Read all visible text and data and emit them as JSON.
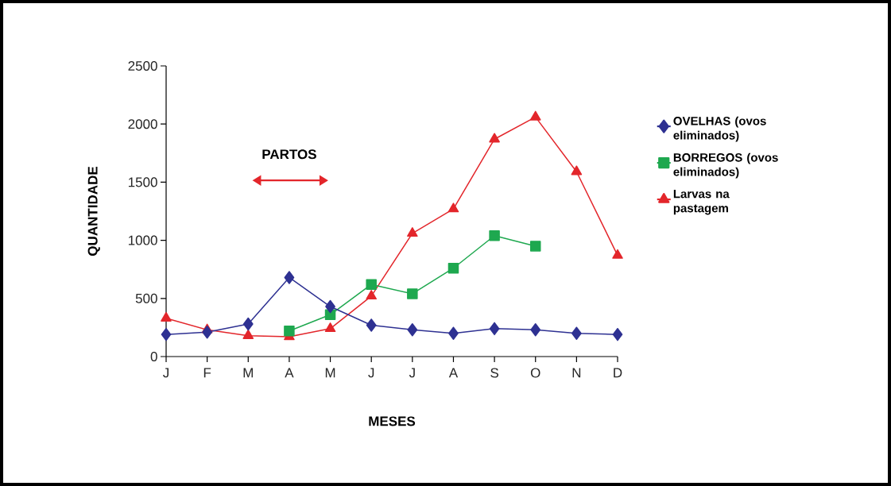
{
  "chart_data": {
    "type": "line",
    "xlabel": "MESES",
    "ylabel": "QUANTIDADE",
    "categories": [
      "J",
      "F",
      "M",
      "A",
      "M",
      "J",
      "J",
      "A",
      "S",
      "O",
      "N",
      "D"
    ],
    "series": [
      {
        "name": "OVELHAS (ovos eliminados)",
        "color": "#2e3192",
        "marker": "diamond",
        "values": [
          190,
          210,
          280,
          680,
          430,
          270,
          230,
          200,
          240,
          230,
          200,
          190
        ]
      },
      {
        "name": "BORREGOS (ovos eliminados)",
        "color": "#1ea84f",
        "marker": "square",
        "values": [
          null,
          null,
          null,
          220,
          360,
          620,
          540,
          760,
          1040,
          950,
          null,
          null
        ]
      },
      {
        "name": "Larvas na pastagem",
        "color": "#e3262b",
        "marker": "triangle",
        "values": [
          330,
          230,
          180,
          170,
          240,
          520,
          1060,
          1270,
          1870,
          2060,
          1590,
          870
        ]
      }
    ],
    "ylim": [
      0,
      2500
    ],
    "yticks": [
      0,
      500,
      1000,
      1500,
      2000,
      2500
    ],
    "legend": "right",
    "grid": false,
    "annotations": [
      "PARTOS"
    ]
  }
}
